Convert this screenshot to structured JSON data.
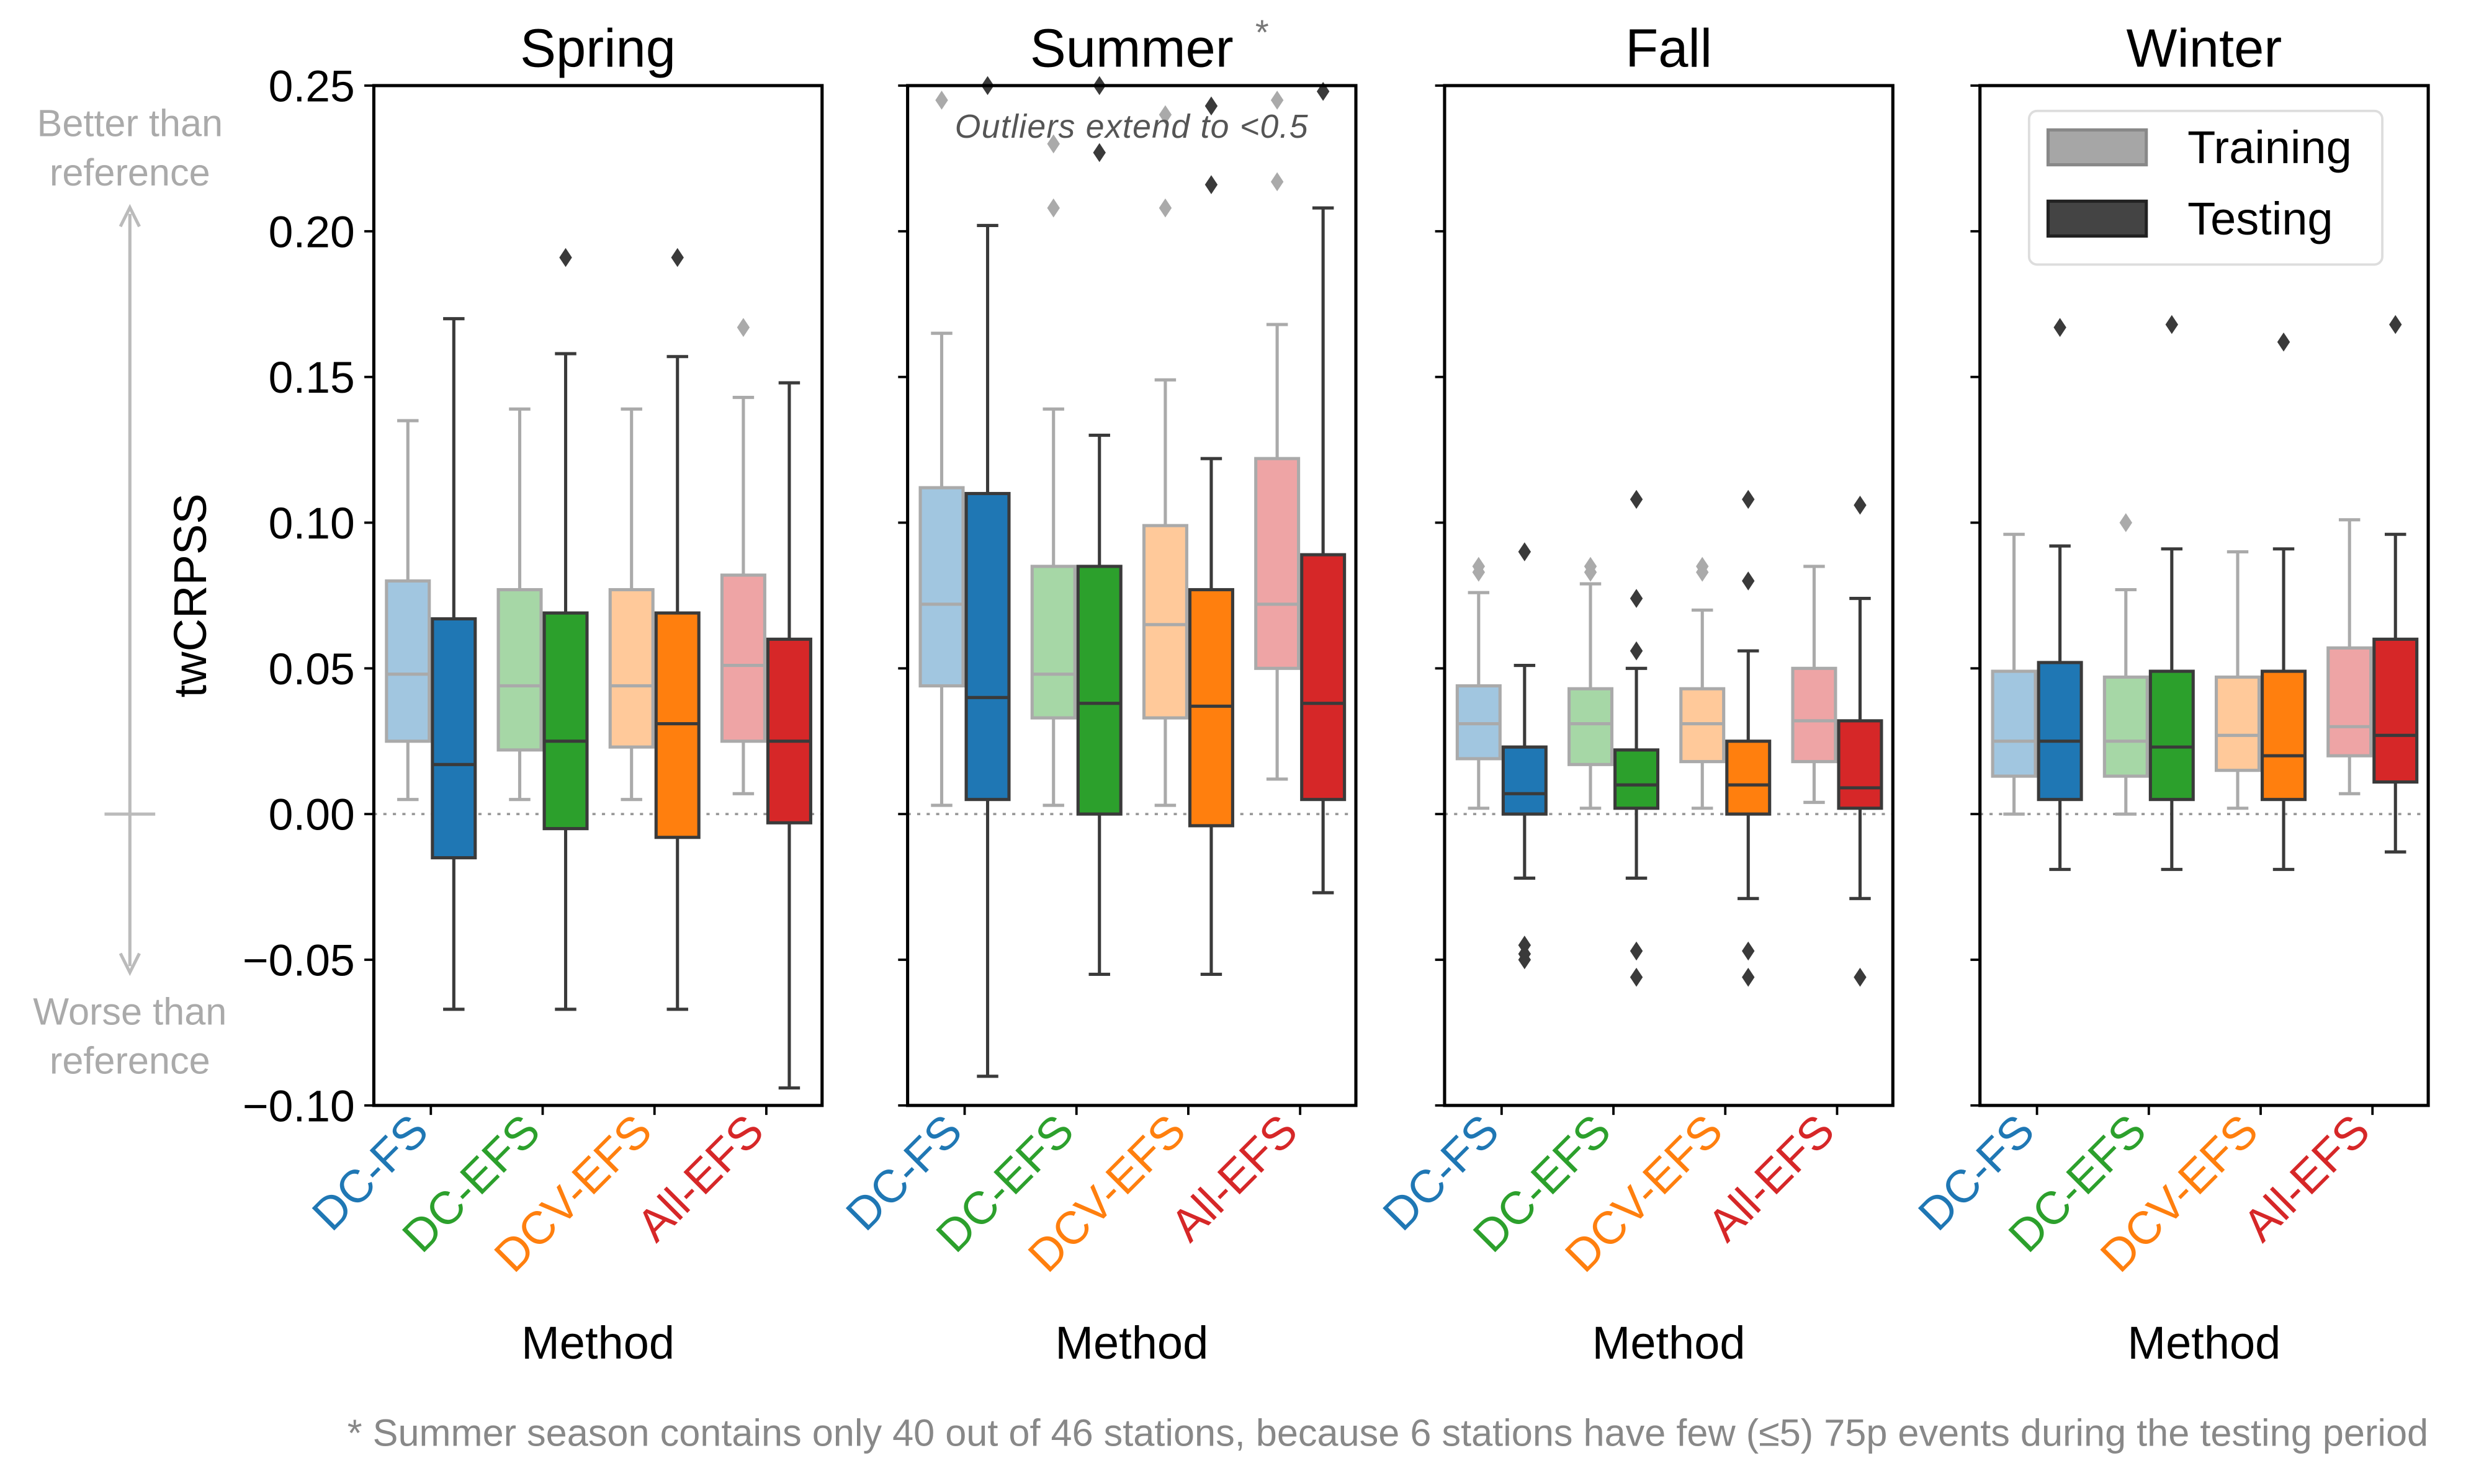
{
  "chart_data": {
    "type": "box",
    "ylabel": "twCRPSS",
    "xlabel": "Method",
    "ylim": [
      -0.1,
      0.25
    ],
    "yticks": [
      "0.25",
      "0.20",
      "0.15",
      "0.10",
      "0.05",
      "0.00",
      "−0.05",
      "−0.10"
    ],
    "ytick_values": [
      0.25,
      0.2,
      0.15,
      0.1,
      0.05,
      0.0,
      -0.05,
      -0.1
    ],
    "reference_line": 0.0,
    "annotations": {
      "better": [
        "Better than",
        "reference"
      ],
      "worse": [
        "Worse than",
        "reference"
      ],
      "summer_note": "Outliers extend to <0.5",
      "footnote": "* Summer season contains only 40 out of 46 stations, because 6 stations have few (≤5) 75p events during the testing period",
      "asterisk": "*"
    },
    "legend": {
      "placement": "top-right of Winter panel",
      "entries": [
        "Training",
        "Testing"
      ],
      "colors": [
        "#a6a6a6",
        "#444444"
      ]
    },
    "methods": [
      "DC-FS",
      "DC-EFS",
      "DCV-EFS",
      "All-EFS"
    ],
    "method_colors": [
      "#1f77b4",
      "#2ca02c",
      "#ff7f0e",
      "#d62728"
    ],
    "panels": [
      {
        "title": "Spring",
        "starred": false,
        "boxes": [
          {
            "train": [
              0.005,
              0.025,
              0.048,
              0.08,
              0.135,
              []
            ],
            "test": [
              -0.067,
              -0.015,
              0.017,
              0.067,
              0.17,
              []
            ]
          },
          {
            "train": [
              0.005,
              0.022,
              0.044,
              0.077,
              0.139,
              []
            ],
            "test": [
              -0.067,
              -0.005,
              0.025,
              0.069,
              0.158,
              [
                0.191
              ]
            ]
          },
          {
            "train": [
              0.005,
              0.023,
              0.044,
              0.077,
              0.139,
              []
            ],
            "test": [
              -0.067,
              -0.008,
              0.031,
              0.069,
              0.157,
              [
                0.191
              ]
            ]
          },
          {
            "train": [
              0.007,
              0.025,
              0.051,
              0.082,
              0.143,
              [
                0.167
              ]
            ],
            "test": [
              -0.094,
              -0.003,
              0.025,
              0.06,
              0.148,
              []
            ]
          }
        ]
      },
      {
        "title": "Summer",
        "starred": true,
        "boxes": [
          {
            "train": [
              0.003,
              0.044,
              0.072,
              0.112,
              0.165,
              [
                0.245
              ]
            ],
            "test": [
              -0.09,
              0.005,
              0.04,
              0.11,
              0.202,
              [
                0.25
              ]
            ]
          },
          {
            "train": [
              0.003,
              0.033,
              0.048,
              0.085,
              0.139,
              [
                0.208,
                0.23
              ]
            ],
            "test": [
              -0.055,
              0.0,
              0.038,
              0.085,
              0.13,
              [
                0.227,
                0.25
              ]
            ]
          },
          {
            "train": [
              0.003,
              0.033,
              0.065,
              0.099,
              0.149,
              [
                0.208,
                0.24
              ]
            ],
            "test": [
              -0.055,
              -0.004,
              0.037,
              0.077,
              0.122,
              [
                0.216,
                0.243
              ]
            ]
          },
          {
            "train": [
              0.012,
              0.05,
              0.072,
              0.122,
              0.168,
              [
                0.217,
                0.245
              ]
            ],
            "test": [
              -0.027,
              0.005,
              0.038,
              0.089,
              0.208,
              [
                0.248
              ]
            ]
          }
        ]
      },
      {
        "title": "Fall",
        "starred": false,
        "boxes": [
          {
            "train": [
              0.002,
              0.019,
              0.031,
              0.044,
              0.076,
              [
                0.083,
                0.085
              ]
            ],
            "test": [
              -0.022,
              0.0,
              0.007,
              0.023,
              0.051,
              [
                0.09,
                -0.045,
                -0.048,
                -0.05
              ]
            ]
          },
          {
            "train": [
              0.002,
              0.017,
              0.031,
              0.043,
              0.079,
              [
                0.083,
                0.085
              ]
            ],
            "test": [
              -0.022,
              0.002,
              0.01,
              0.022,
              0.05,
              [
                0.108,
                0.074,
                0.056,
                -0.047,
                -0.056
              ]
            ]
          },
          {
            "train": [
              0.002,
              0.018,
              0.031,
              0.043,
              0.07,
              [
                0.083,
                0.085
              ]
            ],
            "test": [
              -0.029,
              0.0,
              0.01,
              0.025,
              0.056,
              [
                0.108,
                0.08,
                -0.047,
                -0.056
              ]
            ]
          },
          {
            "train": [
              0.004,
              0.018,
              0.032,
              0.05,
              0.085,
              []
            ],
            "test": [
              -0.029,
              0.002,
              0.009,
              0.032,
              0.074,
              [
                0.106,
                -0.056
              ]
            ]
          }
        ]
      },
      {
        "title": "Winter",
        "starred": false,
        "boxes": [
          {
            "train": [
              0.0,
              0.013,
              0.025,
              0.049,
              0.096,
              []
            ],
            "test": [
              -0.019,
              0.005,
              0.025,
              0.052,
              0.092,
              [
                0.167
              ]
            ]
          },
          {
            "train": [
              0.0,
              0.013,
              0.025,
              0.047,
              0.077,
              [
                0.1
              ]
            ],
            "test": [
              -0.019,
              0.005,
              0.023,
              0.049,
              0.091,
              [
                0.168
              ]
            ]
          },
          {
            "train": [
              0.002,
              0.015,
              0.027,
              0.047,
              0.09,
              []
            ],
            "test": [
              -0.019,
              0.005,
              0.02,
              0.049,
              0.091,
              [
                0.162
              ]
            ]
          },
          {
            "train": [
              0.007,
              0.02,
              0.03,
              0.057,
              0.101,
              []
            ],
            "test": [
              -0.013,
              0.011,
              0.027,
              0.06,
              0.096,
              [
                0.168
              ]
            ]
          }
        ]
      }
    ]
  }
}
